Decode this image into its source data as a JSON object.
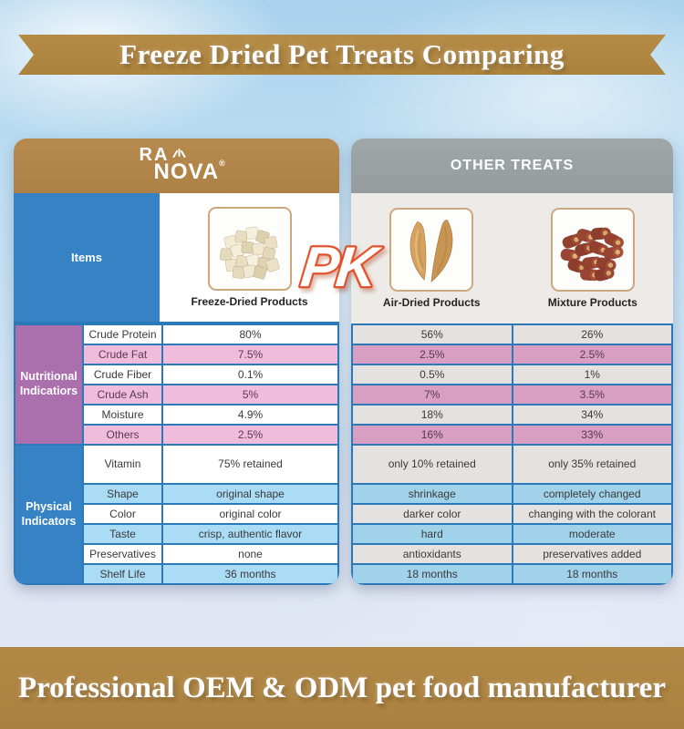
{
  "banners": {
    "top": "Freeze Dried Pet Treats Comparing",
    "bottom": "Professional OEM & ODM pet food manufacturer"
  },
  "pk_badge": "PK",
  "left_card": {
    "logo": {
      "line1": "RA",
      "line2": "NOVA",
      "registered": "®"
    },
    "items_header": "Items",
    "product_label": "Freeze-Dried Products"
  },
  "right_card": {
    "header": "OTHER TREATS",
    "product_labels": [
      "Air-Dried Products",
      "Mixture Products"
    ]
  },
  "sections": {
    "nutritional": {
      "label": "Nutritional Indicatiors",
      "rows": [
        {
          "label": "Crude Protein",
          "freeze_dried": "80%",
          "air_dried": "56%",
          "mixture": "26%"
        },
        {
          "label": "Crude Fat",
          "freeze_dried": "7.5%",
          "air_dried": "2.5%",
          "mixture": "2.5%"
        },
        {
          "label": "Crude Fiber",
          "freeze_dried": "0.1%",
          "air_dried": "0.5%",
          "mixture": "1%"
        },
        {
          "label": "Crude Ash",
          "freeze_dried": "5%",
          "air_dried": "7%",
          "mixture": "3.5%"
        },
        {
          "label": "Moisture",
          "freeze_dried": "4.9%",
          "air_dried": "18%",
          "mixture": "34%"
        },
        {
          "label": "Others",
          "freeze_dried": "2.5%",
          "air_dried": "16%",
          "mixture": "33%"
        }
      ]
    },
    "physical": {
      "label": "Physical Indicators",
      "rows": [
        {
          "label": "Vitamin",
          "freeze_dried": "75% retained",
          "air_dried": "only 10% retained",
          "mixture": "only 35% retained"
        },
        {
          "label": "Shape",
          "freeze_dried": "original shape",
          "air_dried": "shrinkage",
          "mixture": "completely changed"
        },
        {
          "label": "Color",
          "freeze_dried": "original color",
          "air_dried": "darker color",
          "mixture": "changing with the colorant"
        },
        {
          "label": "Taste",
          "freeze_dried": "crisp, authentic flavor",
          "air_dried": "hard",
          "mixture": "moderate"
        },
        {
          "label": "Preservatives",
          "freeze_dried": "none",
          "air_dried": "antioxidants",
          "mixture": "preservatives added"
        },
        {
          "label": "Shelf Life",
          "freeze_dried": "36 months",
          "air_dried": "18 months",
          "mixture": "18 months"
        }
      ]
    }
  },
  "colors": {
    "banner_gold": "#b1873f",
    "left_header_gold": "#b5854a",
    "right_header_gray": "#9aa1a4",
    "table_border_blue": "#2b79b8",
    "sidebar_blue": "#3583c4",
    "sidebar_purple": "#ab6fae",
    "pink_row_left": "#f0bcdb",
    "pink_row_right": "#d89fc3",
    "blue_row_left": "#aadcf6",
    "blue_row_right": "#a0d2ea",
    "gray_row": "#e4e2e0",
    "pk_orange": "#e34e26"
  }
}
